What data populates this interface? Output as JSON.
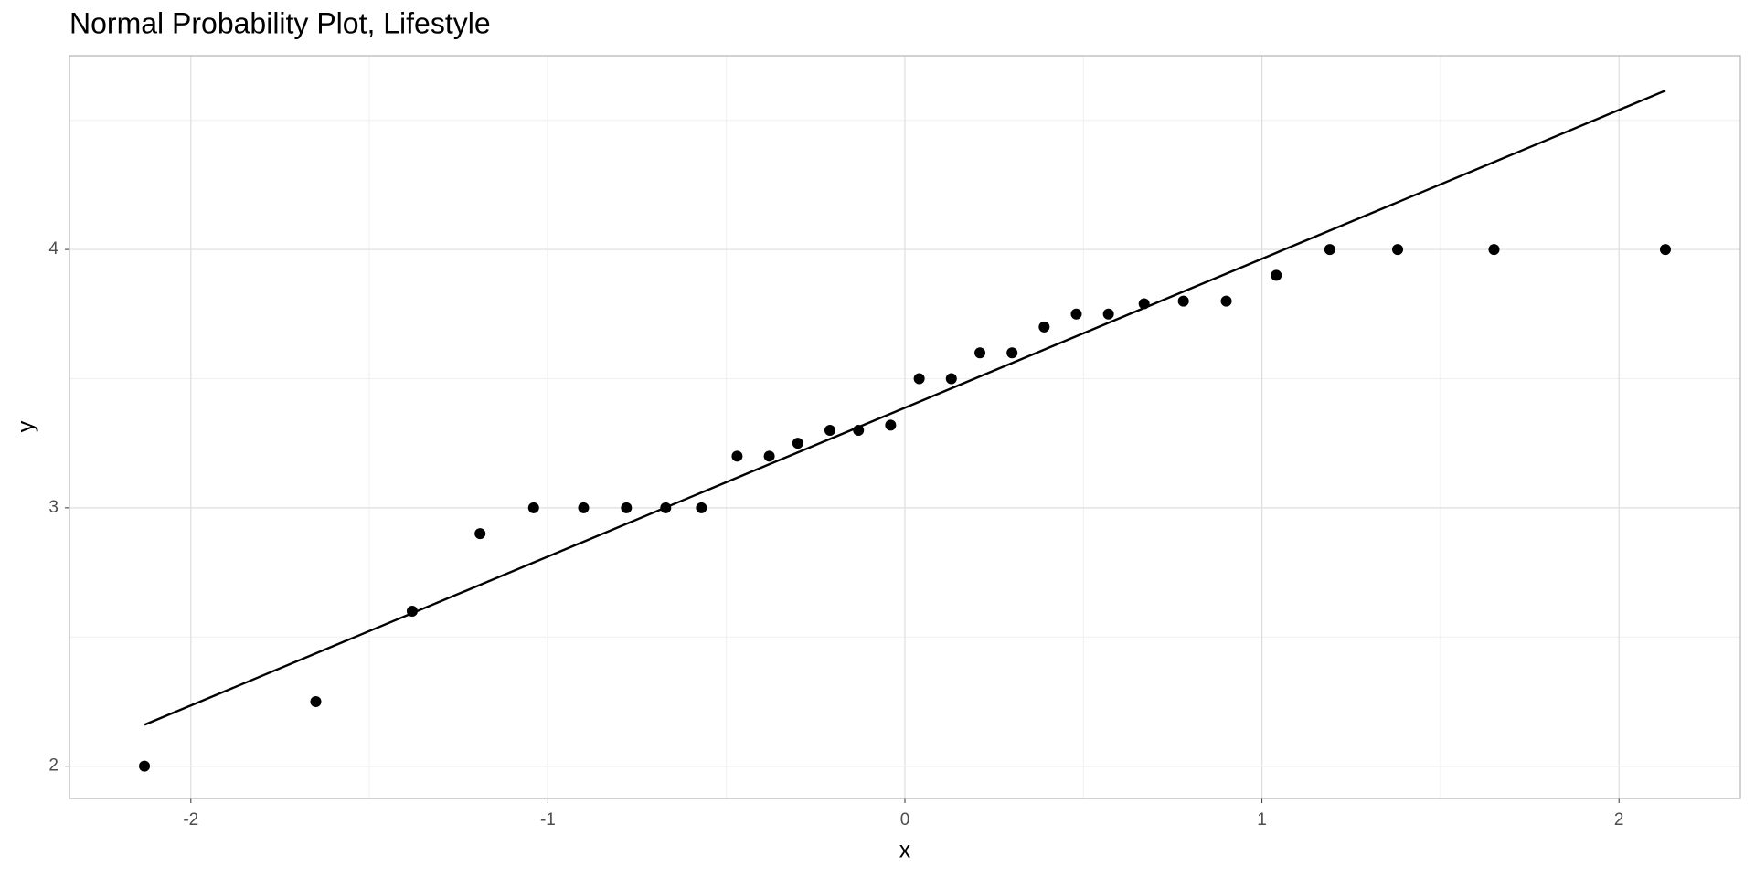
{
  "chart_data": {
    "type": "scatter",
    "title": "Normal Probability Plot, Lifestyle",
    "x_label": "x",
    "y_label": "y",
    "x": [
      -2.13,
      -1.65,
      -1.38,
      -1.19,
      -1.04,
      -0.9,
      -0.78,
      -0.67,
      -0.57,
      -0.47,
      -0.38,
      -0.3,
      -0.21,
      -0.13,
      -0.04,
      0.04,
      0.13,
      0.21,
      0.3,
      0.39,
      0.48,
      0.57,
      0.67,
      0.78,
      0.9,
      1.04,
      1.19,
      1.38,
      1.65,
      2.13
    ],
    "y": [
      2.0,
      2.25,
      2.6,
      2.9,
      3.0,
      3.0,
      3.0,
      3.0,
      3.0,
      3.2,
      3.2,
      3.25,
      3.3,
      3.3,
      3.32,
      3.5,
      3.5,
      3.6,
      3.6,
      3.7,
      3.75,
      3.75,
      3.79,
      3.8,
      3.8,
      3.9,
      4.0,
      4.0,
      4.0,
      4.0
    ],
    "color": "#000000",
    "reference_line": {
      "x": [
        -2.13,
        2.13
      ],
      "y": [
        2.16,
        4.615
      ],
      "color": "#000000"
    },
    "xlim": [
      -2.34,
      2.34
    ],
    "ylim": [
      1.875,
      4.75
    ],
    "xticks": [
      -2,
      -1,
      0,
      1,
      2
    ],
    "yticks": [
      2,
      3,
      4
    ],
    "x_minor_grid": [
      -1.5,
      -0.5,
      0.5,
      1.5
    ],
    "y_minor_grid": [
      2.5,
      3.5,
      4.5
    ],
    "grid": true
  }
}
